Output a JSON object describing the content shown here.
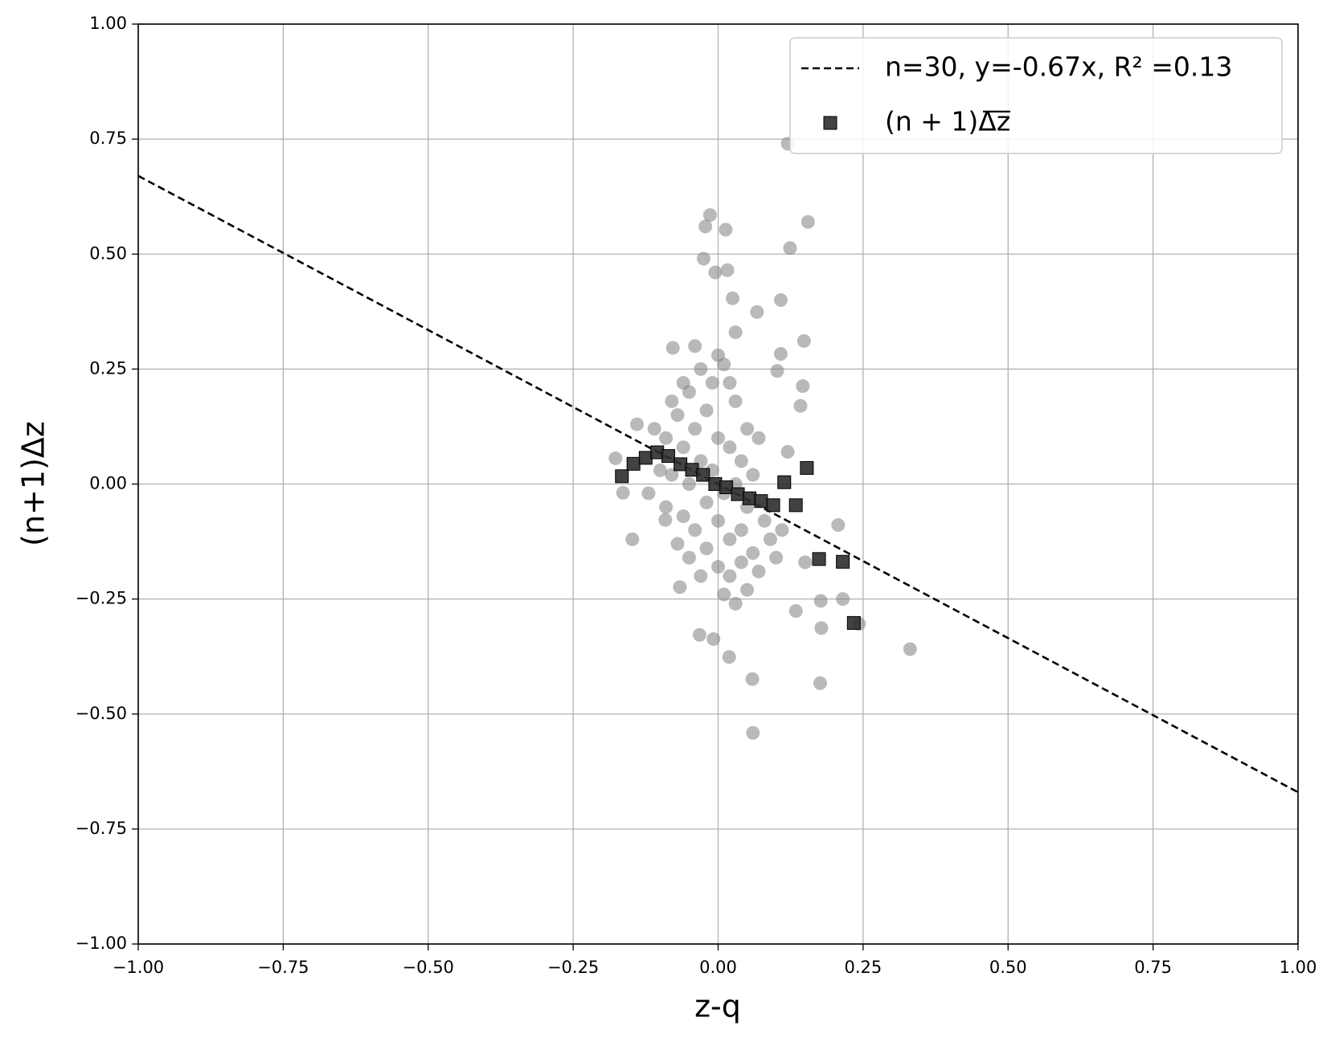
{
  "chart_data": {
    "type": "scatter",
    "xlabel": "z-q",
    "ylabel": "(n+1)Δz",
    "xlim": [
      -1,
      1
    ],
    "ylim": [
      -1,
      1
    ],
    "xticks": [
      {
        "value": -1,
        "label": "−1.00"
      },
      {
        "value": -0.75,
        "label": "−0.75"
      },
      {
        "value": -0.5,
        "label": "−0.50"
      },
      {
        "value": -0.25,
        "label": "−0.25"
      },
      {
        "value": 0,
        "label": "0.00"
      },
      {
        "value": 0.25,
        "label": "0.25"
      },
      {
        "value": 0.5,
        "label": "0.50"
      },
      {
        "value": 0.75,
        "label": "0.75"
      },
      {
        "value": 1,
        "label": "1.00"
      }
    ],
    "yticks": [
      {
        "value": -1,
        "label": "−1.00"
      },
      {
        "value": -0.75,
        "label": "−0.75"
      },
      {
        "value": -0.5,
        "label": "−0.50"
      },
      {
        "value": -0.25,
        "label": "−0.25"
      },
      {
        "value": 0,
        "label": "0.00"
      },
      {
        "value": 0.25,
        "label": "0.25"
      },
      {
        "value": 0.5,
        "label": "0.50"
      },
      {
        "value": 0.75,
        "label": "0.75"
      },
      {
        "value": 1,
        "label": "1.00"
      }
    ],
    "grid": true,
    "legend": "upper right",
    "series": [
      {
        "name": "n=30, y=-0.67x, R² =0.13",
        "marker": "line",
        "linestyle": "dashed",
        "color": "#000000",
        "x": [
          -1,
          1
        ],
        "values": [
          0.67,
          -0.67
        ]
      },
      {
        "name": "(n + 1)Δ̅z̅",
        "marker": "square",
        "color": "#2e2e2e",
        "x": [
          -0.166,
          -0.146,
          -0.125,
          -0.105,
          -0.086,
          -0.065,
          -0.045,
          -0.026,
          -0.005,
          0.014,
          0.034,
          0.054,
          0.074,
          0.095,
          0.114,
          0.134,
          0.153,
          0.174,
          0.215,
          0.234
        ],
        "values": [
          0.017,
          0.044,
          0.057,
          0.069,
          0.061,
          0.043,
          0.031,
          0.02,
          0.0,
          -0.007,
          -0.022,
          -0.031,
          -0.037,
          -0.046,
          0.004,
          -0.046,
          0.035,
          -0.163,
          -0.169,
          -0.302
        ]
      },
      {
        "marker": "circle",
        "color": "#808080",
        "x": [
          0.12,
          -0.014,
          -0.022,
          0.013,
          0.155,
          0.124,
          -0.025,
          -0.005,
          0.016,
          0.108,
          0.025,
          0.067,
          0.148,
          0.108,
          -0.078,
          0.331,
          0.06,
          0.176,
          0.059,
          0.019,
          0.243,
          0.178,
          0.215,
          0.177,
          0.134,
          -0.177,
          -0.164,
          -0.148,
          -0.066,
          -0.032,
          -0.008,
          0.207,
          0.142,
          0.146,
          0.102,
          -0.14,
          -0.091,
          0.15,
          -0.07,
          -0.05,
          -0.03,
          -0.01,
          0.01,
          0.03,
          0.05,
          0.07,
          -0.09,
          -0.06,
          -0.04,
          -0.02,
          0,
          0.02,
          0.04,
          0.06,
          -0.1,
          -0.08,
          -0.05,
          -0.03,
          -0.01,
          0.01,
          0.03,
          0.05,
          0.08,
          -0.09,
          -0.06,
          -0.04,
          -0.02,
          0,
          0.02,
          0.04,
          0.06,
          0.09,
          -0.07,
          -0.05,
          -0.02,
          0,
          0.02,
          0.04,
          0.07,
          0.1,
          -0.03,
          0.01,
          0.03,
          0.05,
          -0.08,
          -0.06,
          0,
          0.02,
          -0.11,
          -0.12,
          0.11,
          0.12,
          -0.04,
          0.03
        ],
        "values": [
          0.74,
          0.585,
          0.56,
          0.553,
          0.57,
          0.513,
          0.49,
          0.46,
          0.465,
          0.4,
          0.404,
          0.374,
          0.311,
          0.283,
          0.296,
          -0.359,
          -0.541,
          -0.433,
          -0.424,
          -0.376,
          -0.304,
          -0.313,
          -0.25,
          -0.254,
          -0.276,
          0.056,
          -0.019,
          -0.12,
          -0.224,
          -0.328,
          -0.337,
          -0.089,
          0.17,
          0.213,
          0.246,
          0.13,
          -0.078,
          -0.17,
          0.15,
          0.2,
          0.25,
          0.22,
          0.26,
          0.18,
          0.12,
          0.1,
          0.1,
          0.08,
          0.12,
          0.16,
          0.1,
          0.08,
          0.05,
          0.02,
          0.03,
          0.02,
          0.0,
          0.05,
          0.03,
          -0.02,
          0.0,
          -0.05,
          -0.08,
          -0.05,
          -0.07,
          -0.1,
          -0.04,
          -0.08,
          -0.12,
          -0.1,
          -0.15,
          -0.12,
          -0.13,
          -0.16,
          -0.14,
          -0.18,
          -0.2,
          -0.17,
          -0.19,
          -0.16,
          -0.2,
          -0.24,
          -0.26,
          -0.23,
          0.18,
          0.22,
          0.28,
          0.22,
          0.12,
          -0.02,
          -0.1,
          0.07,
          0.3,
          0.33
        ]
      }
    ]
  }
}
